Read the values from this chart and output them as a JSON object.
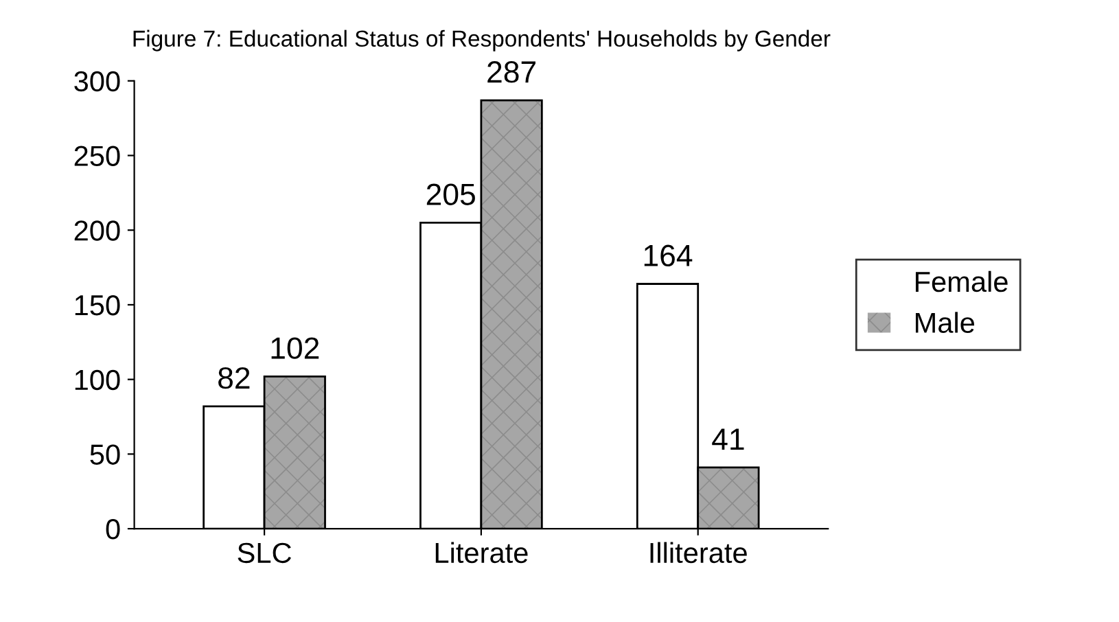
{
  "chart_data": {
    "type": "bar",
    "title": "Figure 7: Educational Status of Respondents' Households by Gender",
    "categories": [
      "SLC",
      "Literate",
      "Illiterate"
    ],
    "series": [
      {
        "name": "Female",
        "color": "#ffffff",
        "values": [
          82,
          205,
          164
        ]
      },
      {
        "name": "Male",
        "color": "#a6a6a6",
        "values": [
          102,
          287,
          41
        ]
      }
    ],
    "ylim": [
      0,
      300
    ],
    "yticks": [
      0,
      50,
      100,
      150,
      200,
      250,
      300
    ],
    "data_labels": true,
    "legend": "right",
    "grid": false
  }
}
